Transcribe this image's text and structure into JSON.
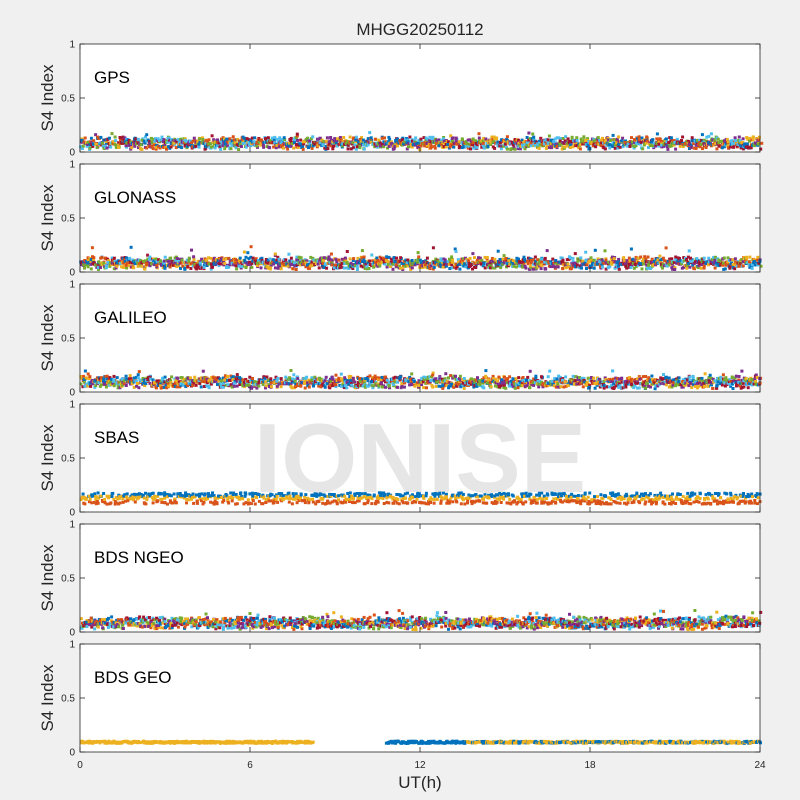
{
  "figure": {
    "title": "MHGG20250112",
    "watermark": "IONISE",
    "xlabel": "UT(h)",
    "ylabel": "S4 Index",
    "xticks": [
      "0",
      "6",
      "12",
      "18",
      "24"
    ],
    "yticks": [
      "0",
      "0.5",
      "1"
    ]
  },
  "colors": {
    "background": "#f0f0f0",
    "axes": "#ffffff",
    "palette": [
      "#0072BD",
      "#D95319",
      "#EDB120",
      "#7E2F8E",
      "#77AC30",
      "#4DBEEE",
      "#A2142F"
    ]
  },
  "chart_data": [
    {
      "type": "scatter",
      "label": "GPS",
      "xlim": [
        0,
        24
      ],
      "ylim": [
        0,
        1
      ],
      "approx_s4_range": [
        0.03,
        0.18
      ],
      "typical_s4": 0.07,
      "coverage": [
        [
          0,
          24
        ]
      ],
      "series_count": 7
    },
    {
      "type": "scatter",
      "label": "GLONASS",
      "xlim": [
        0,
        24
      ],
      "ylim": [
        0,
        1
      ],
      "approx_s4_range": [
        0.03,
        0.24
      ],
      "typical_s4": 0.07,
      "coverage": [
        [
          0,
          24
        ]
      ],
      "series_count": 7
    },
    {
      "type": "scatter",
      "label": "GALILEO",
      "xlim": [
        0,
        24
      ],
      "ylim": [
        0,
        1
      ],
      "approx_s4_range": [
        0.03,
        0.2
      ],
      "typical_s4": 0.08,
      "coverage": [
        [
          0,
          24
        ]
      ],
      "series_count": 7
    },
    {
      "type": "scatter",
      "label": "SBAS",
      "xlim": [
        0,
        24
      ],
      "ylim": [
        0,
        1
      ],
      "approx_s4_range": [
        0.08,
        0.2
      ],
      "typical_s4": 0.15,
      "coverage": [
        [
          0,
          24
        ]
      ],
      "series_count": 3
    },
    {
      "type": "scatter",
      "label": "BDS NGEO",
      "xlim": [
        0,
        24
      ],
      "ylim": [
        0,
        1
      ],
      "approx_s4_range": [
        0.03,
        0.2
      ],
      "typical_s4": 0.07,
      "coverage": [
        [
          0,
          24
        ]
      ],
      "series_count": 7
    },
    {
      "type": "scatter",
      "label": "BDS GEO",
      "xlim": [
        0,
        24
      ],
      "ylim": [
        0,
        1
      ],
      "approx_s4_range": [
        0.07,
        0.11
      ],
      "typical_s4": 0.09,
      "coverage": [
        [
          0,
          8.2
        ],
        [
          10.8,
          24
        ]
      ],
      "series_count": 2
    }
  ]
}
